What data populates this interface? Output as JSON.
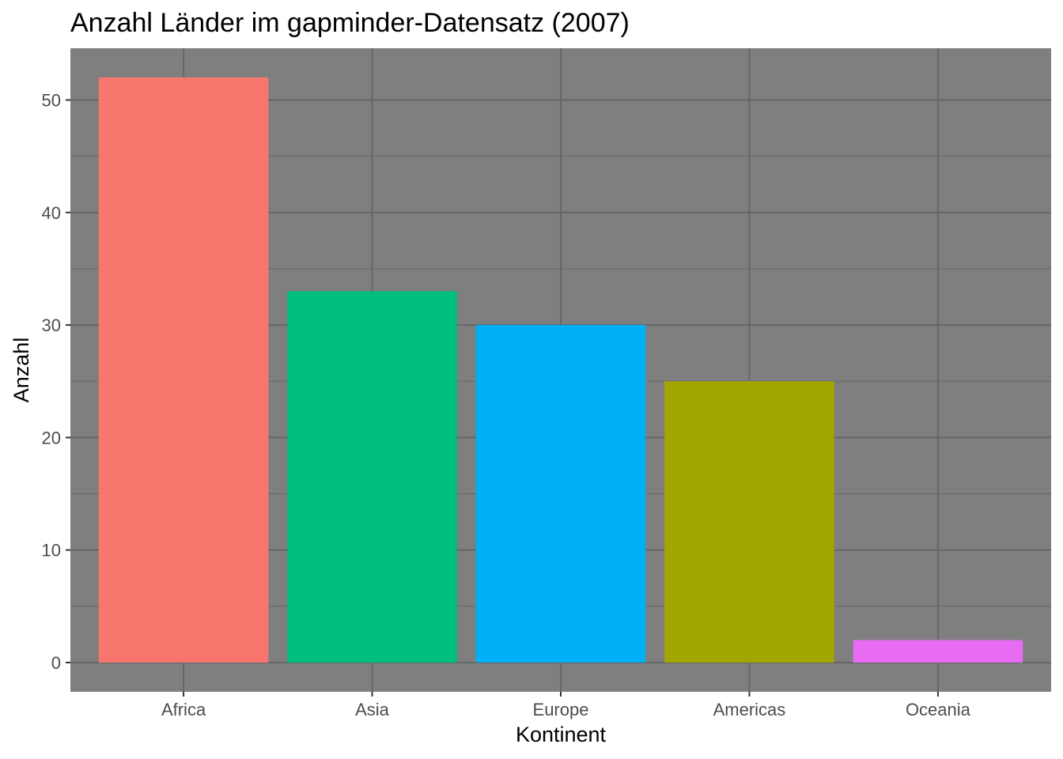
{
  "chart_data": {
    "type": "bar",
    "title": "Anzahl Länder im gapminder-Datensatz (2007)",
    "xlabel": "Kontinent",
    "ylabel": "Anzahl",
    "categories": [
      "Africa",
      "Asia",
      "Europe",
      "Americas",
      "Oceania"
    ],
    "values": [
      52,
      33,
      30,
      25,
      2
    ],
    "colors": [
      "#F8766D",
      "#00BF7D",
      "#00B0F6",
      "#A3A500",
      "#E76BF3"
    ],
    "ylim": [
      -2.6,
      54.6
    ],
    "yticks": [
      0,
      10,
      20,
      30,
      40,
      50
    ],
    "grid": true,
    "legend": "none",
    "panel_background": "#7f7f7f",
    "grid_color": "#666666"
  }
}
